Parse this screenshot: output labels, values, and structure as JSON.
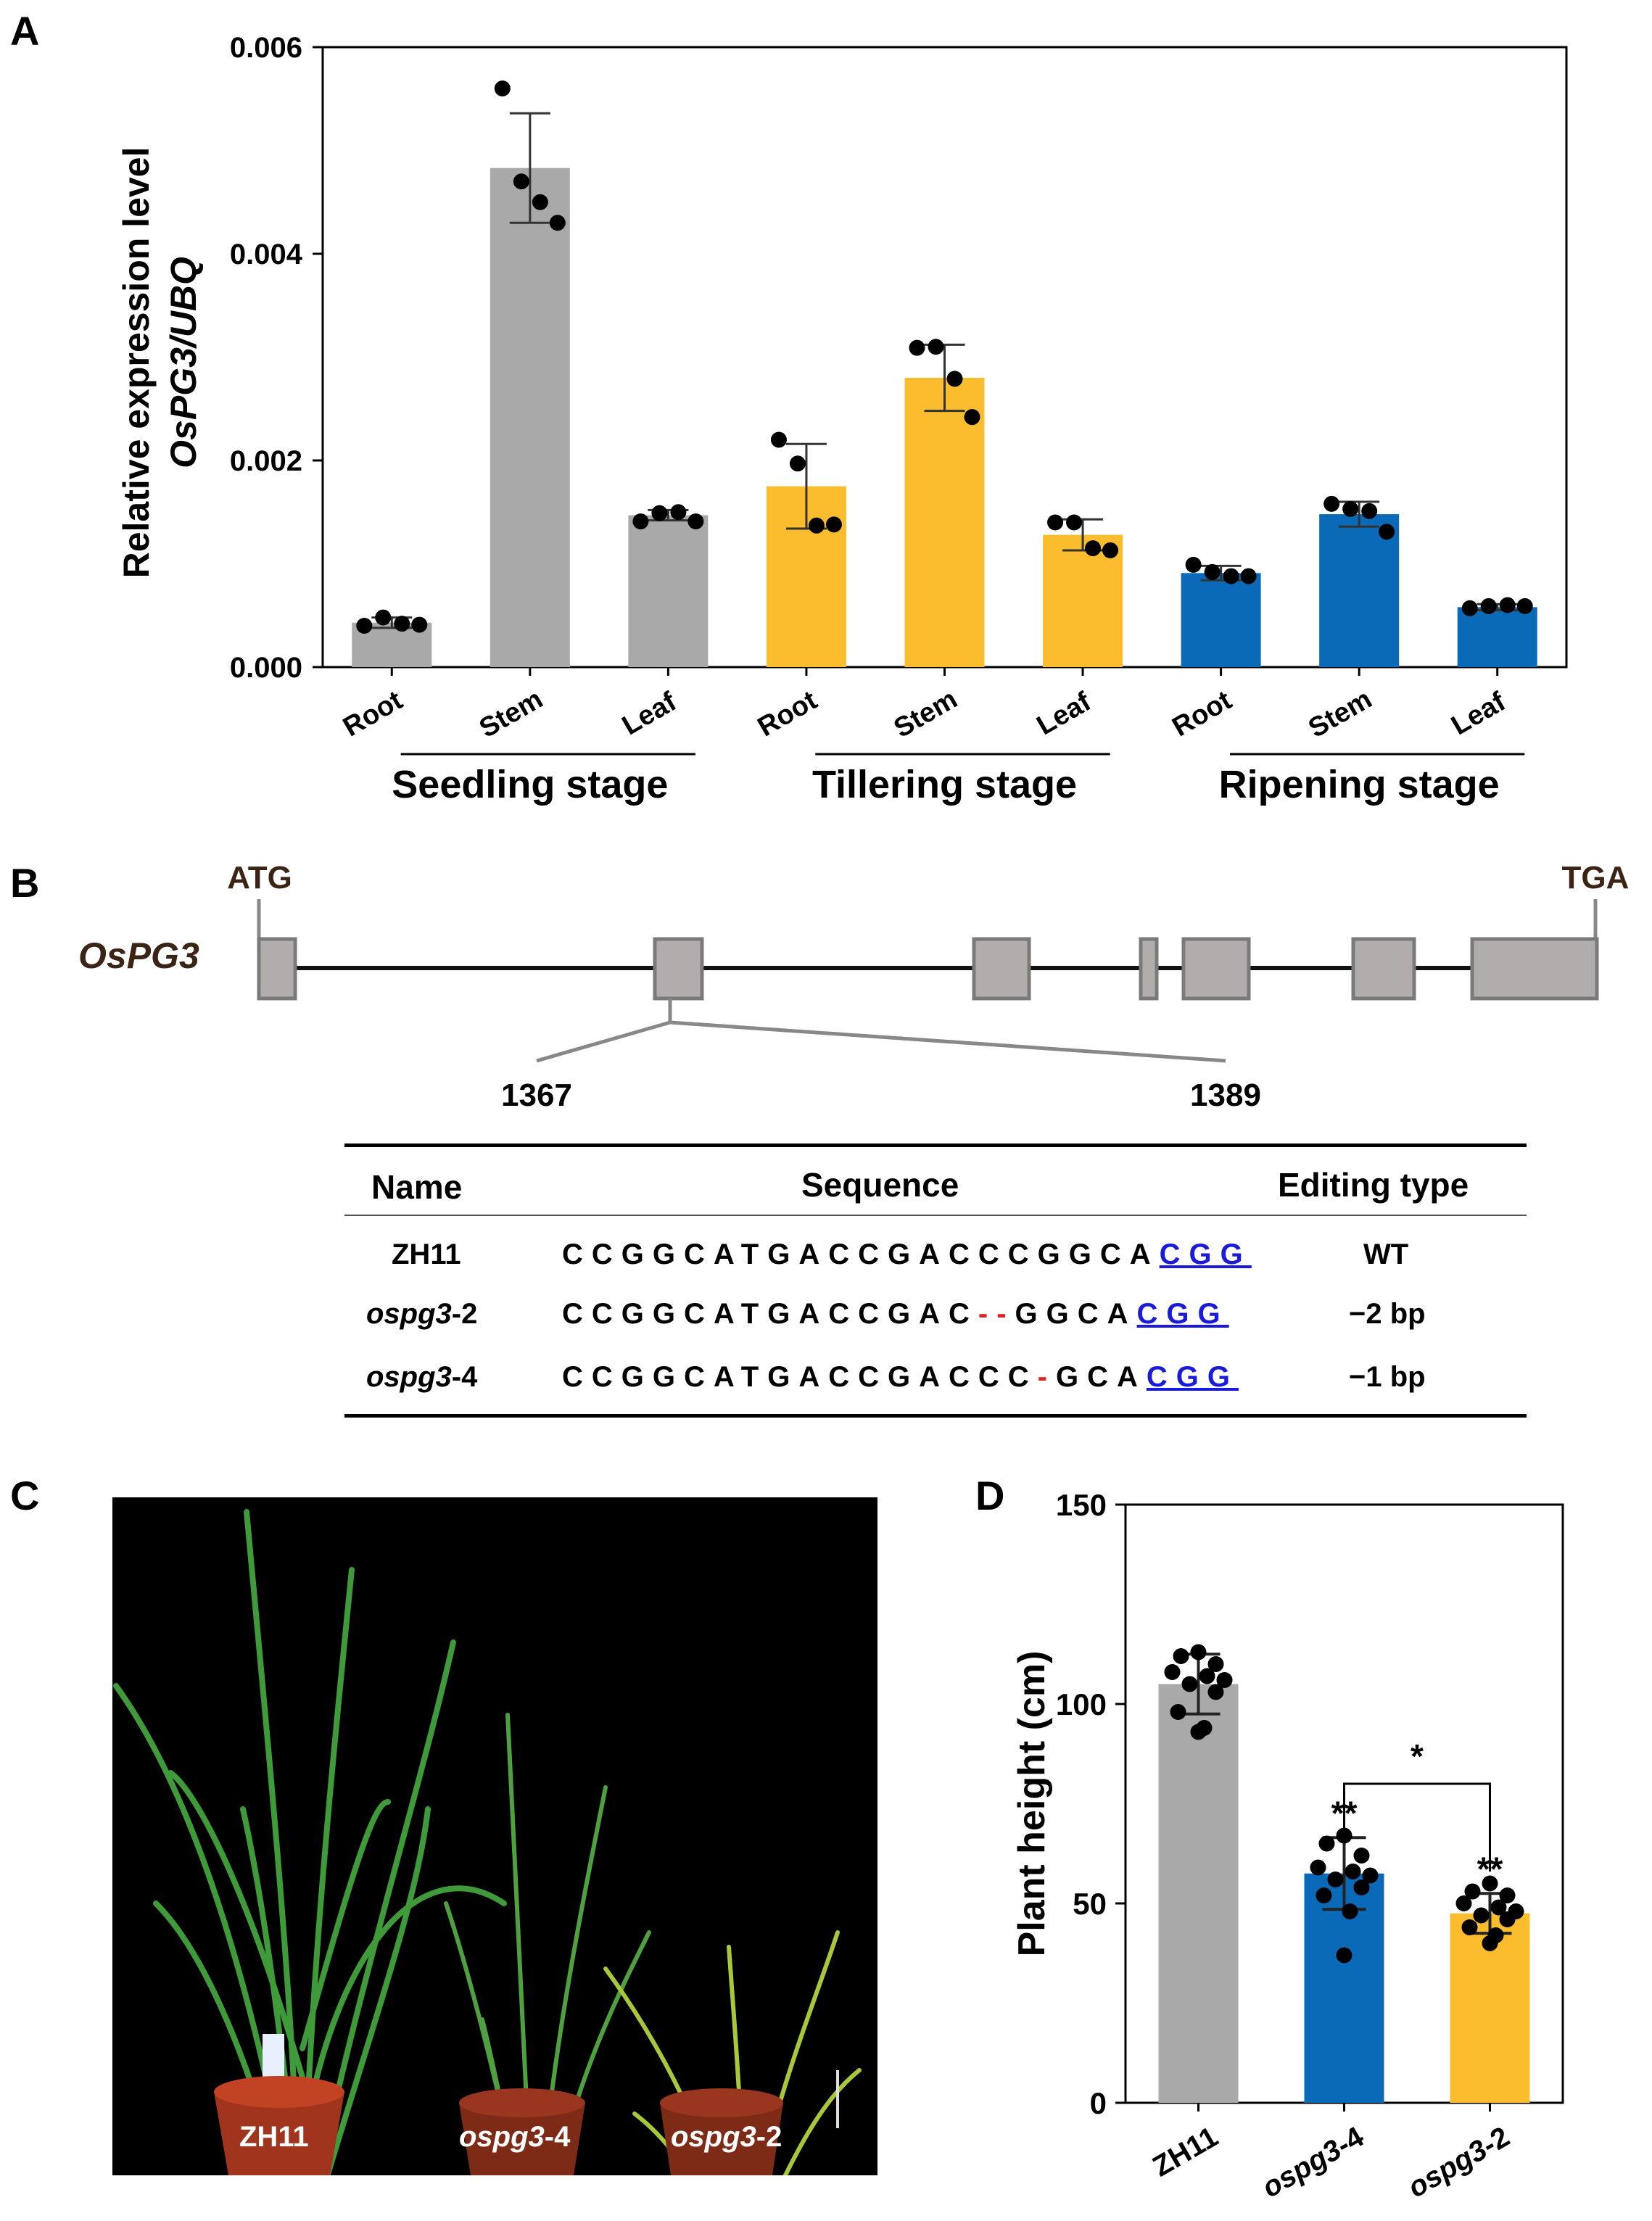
{
  "panels": {
    "A": "A",
    "B": "B",
    "C": "C",
    "D": "D"
  },
  "chart_data": [
    {
      "type": "bar",
      "panel": "A",
      "ylabel_line1": "Relative expression level",
      "ylabel_line2": "OsPG3/UBQ",
      "ylim": [
        0,
        0.006
      ],
      "yticks": [
        "0.000",
        "0.002",
        "0.004",
        "0.006"
      ],
      "ytick_values": [
        0,
        0.002,
        0.004,
        0.006
      ],
      "categories": [
        "Root",
        "Stem",
        "Leaf",
        "Root",
        "Stem",
        "Leaf",
        "Root",
        "Stem",
        "Leaf"
      ],
      "groups": [
        "Seedling stage",
        "Tillering stage",
        "Ripening stage"
      ],
      "values": [
        0.00043,
        0.00483,
        0.00147,
        0.00175,
        0.0028,
        0.00128,
        0.00091,
        0.00148,
        0.00058
      ],
      "errors": [
        5e-05,
        0.00053,
        5e-05,
        0.00041,
        0.00032,
        0.00015,
        7e-05,
        0.00012,
        3e-05
      ],
      "points": [
        [
          0.0004,
          0.00048,
          0.00042,
          0.00041
        ],
        [
          0.0056,
          0.0047,
          0.0045,
          0.0043
        ],
        [
          0.00141,
          0.00149,
          0.0015,
          0.00141
        ],
        [
          0.0022,
          0.00197,
          0.00137,
          0.00138
        ],
        [
          0.00309,
          0.0031,
          0.00279,
          0.00242
        ],
        [
          0.0014,
          0.0014,
          0.00115,
          0.00113
        ],
        [
          0.00099,
          0.00092,
          0.00088,
          0.00088
        ],
        [
          0.00158,
          0.00153,
          0.00151,
          0.00131
        ],
        [
          0.00057,
          0.00059,
          0.0006,
          0.00059
        ]
      ],
      "colors": [
        "#a9a9a9",
        "#a9a9a9",
        "#a9a9a9",
        "#fbbd2e",
        "#fbbd2e",
        "#fbbd2e",
        "#0a6ab8",
        "#0a6ab8",
        "#0a6ab8"
      ]
    },
    {
      "type": "bar",
      "panel": "D",
      "ylabel": "Plant height (cm)",
      "ylim": [
        0,
        150
      ],
      "yticks": [
        "0",
        "50",
        "100",
        "150"
      ],
      "ytick_values": [
        0,
        50,
        100,
        150
      ],
      "categories": [
        "ZH11",
        "ospg3-4",
        "ospg3-2"
      ],
      "values": [
        105,
        57.5,
        47.5
      ],
      "errors": [
        7.5,
        9.0,
        5.0
      ],
      "significance": [
        "",
        "**",
        "**"
      ],
      "comparison": {
        "from": 1,
        "to": 2,
        "label": "*"
      },
      "points": [
        [
          113,
          112,
          110,
          108,
          107,
          106,
          105,
          103,
          98,
          94,
          93
        ],
        [
          67,
          65,
          62,
          59,
          58,
          57,
          56,
          54,
          52,
          48,
          37
        ],
        [
          55,
          53,
          52,
          50,
          49,
          48,
          47,
          46,
          44,
          42,
          40
        ]
      ],
      "colors": [
        "#a9a9a9",
        "#0a6ab8",
        "#fbbd2e"
      ]
    }
  ],
  "gene_model": {
    "name": "OsPG3",
    "start_label": "ATG",
    "end_label": "TGA",
    "pos_start": "1367",
    "pos_end": "1389"
  },
  "sequence_table": {
    "headers": [
      "Name",
      "Sequence",
      "Editing type"
    ],
    "rows": [
      {
        "name": "ZH11",
        "name_suffix": "",
        "seq_main": "CCGGCATGACCGACCCGGCA",
        "seq_del": "",
        "seq_tail": "",
        "pam": "CGG",
        "type": "WT"
      },
      {
        "name": "ospg3",
        "name_suffix": "-2",
        "seq_main": "CCGGCATGACCGAC",
        "seq_del": "--",
        "seq_tail": "GGCA",
        "pam": "CGG",
        "type": "−2 bp"
      },
      {
        "name": "ospg3",
        "name_suffix": "-4",
        "seq_main": "CCGGCATGACCGACCC",
        "seq_del": "-",
        "seq_tail": "GCA",
        "pam": "CGG",
        "type": "−1 bp"
      }
    ]
  },
  "photo": {
    "labels": [
      {
        "name": "ZH11",
        "suffix": ""
      },
      {
        "name": "ospg3",
        "suffix": "-4"
      },
      {
        "name": "ospg3",
        "suffix": "-2"
      }
    ]
  }
}
